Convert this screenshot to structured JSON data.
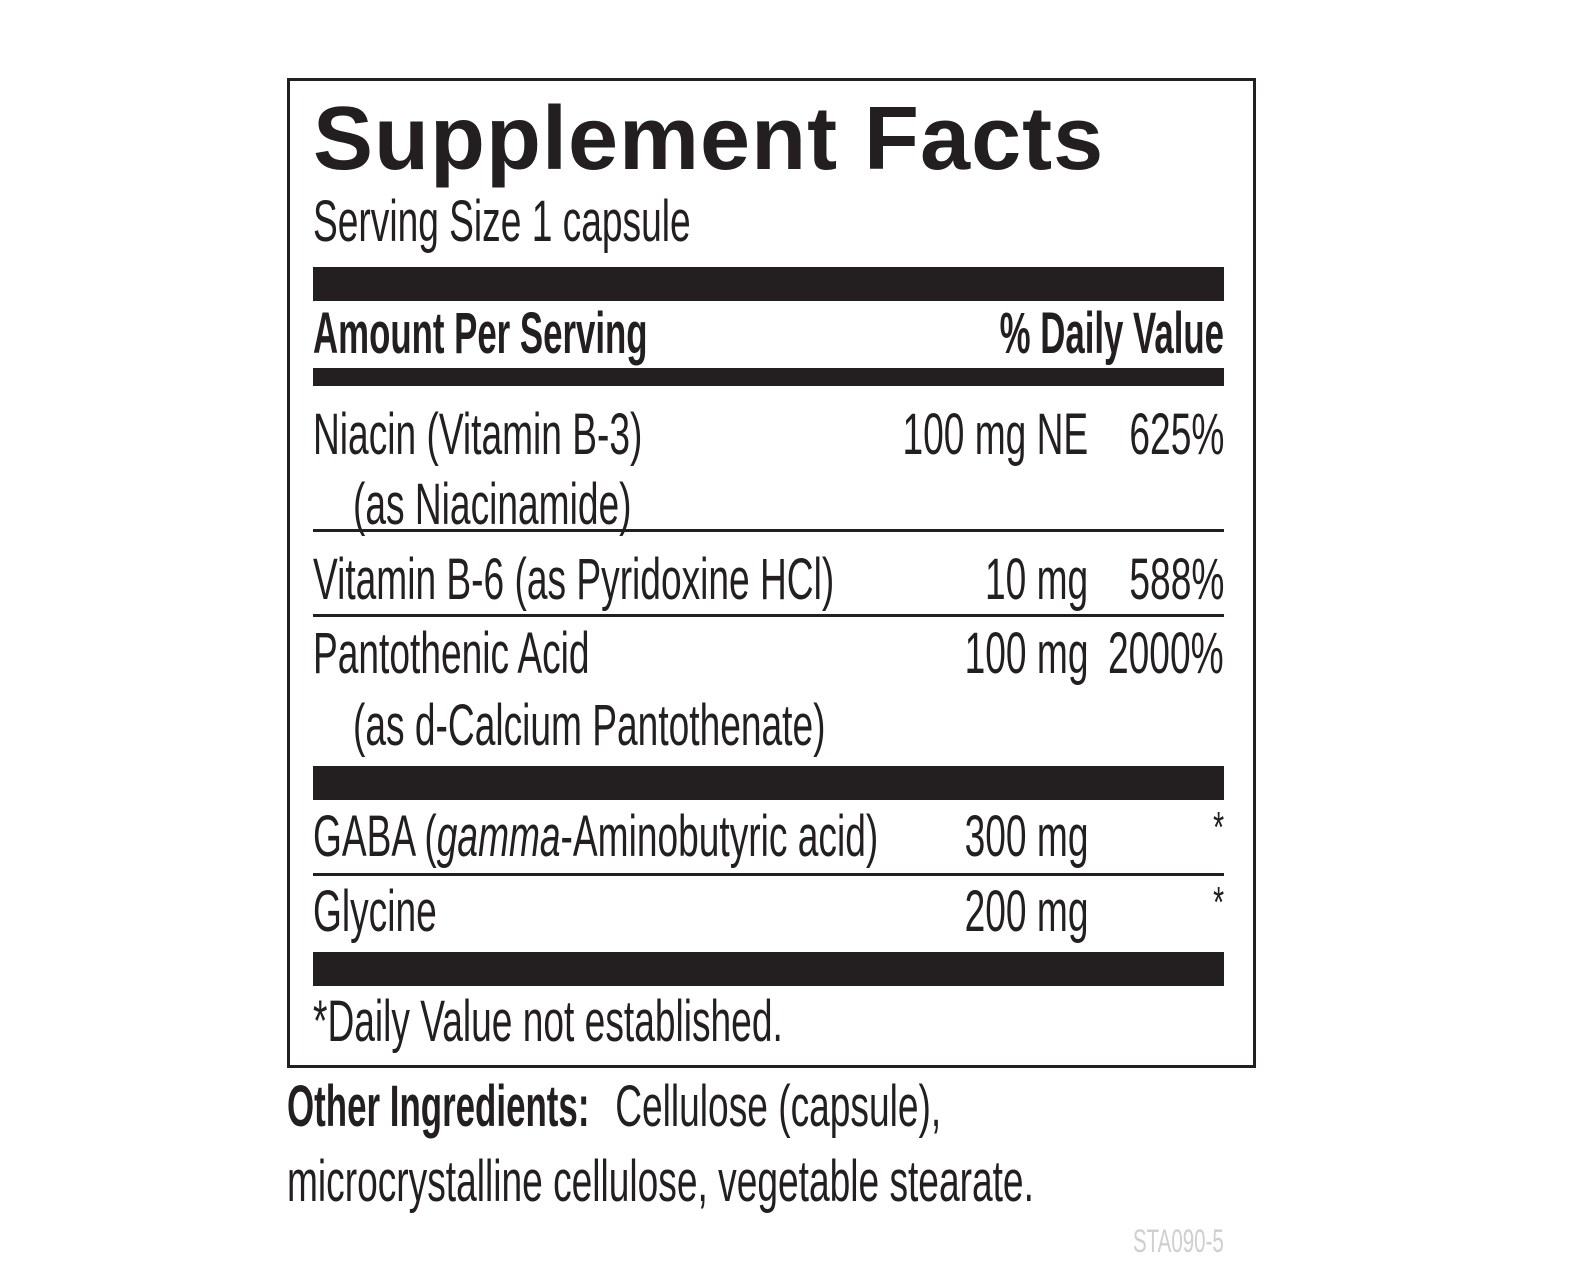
{
  "label": {
    "title": "Supplement Facts",
    "serving_size": "Serving Size 1 capsule",
    "header_amount": "Amount Per Serving",
    "header_dv": "% Daily Value",
    "rows": [
      {
        "name": "Niacin (Vitamin B-3)",
        "sub": "(as Niacinamide)",
        "amount": "100 mg NE",
        "dv": "625%"
      },
      {
        "name": "Vitamin B-6 (as Pyridoxine HCl)",
        "amount": "10 mg",
        "dv": "588%"
      },
      {
        "name": "Pantothenic Acid",
        "sub": "(as d-Calcium Pantothenate)",
        "amount": "100 mg",
        "dv": "2000%"
      },
      {
        "name_pre": "GABA (",
        "name_italic": "gamma",
        "name_post": "-Aminobutyric acid)",
        "amount": "300 mg",
        "dv": "*"
      },
      {
        "name": "Glycine",
        "amount": "200 mg",
        "dv": "*"
      }
    ],
    "footnote": "*Daily Value not established."
  },
  "other_ingredients": {
    "label": "Other Ingredients:",
    "line1": " Cellulose (capsule),",
    "line2": "microcrystalline cellulose, vegetable stearate."
  },
  "code": "STA090-5"
}
